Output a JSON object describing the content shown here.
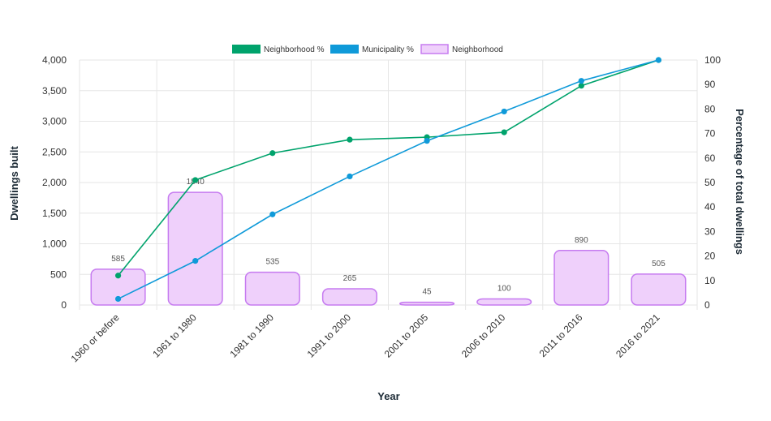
{
  "chart_data": {
    "type": "bar",
    "xlabel": "Year",
    "ylabel": "Dwellings built",
    "y2label": "Percentage of total dwellings",
    "categories": [
      "1960 or before",
      "1961 to 1980",
      "1981 to 1990",
      "1991 to 2000",
      "2001 to 2005",
      "2006 to 2010",
      "2011 to 2016",
      "2016 to 2021"
    ],
    "ylim": [
      0,
      4000
    ],
    "yticks": [
      "0",
      "500",
      "1,000",
      "1,500",
      "2,000",
      "2,500",
      "3,000",
      "3,500",
      "4,000"
    ],
    "y2lim": [
      0,
      100
    ],
    "y2ticks": [
      "0",
      "10",
      "20",
      "30",
      "40",
      "50",
      "60",
      "70",
      "80",
      "90",
      "100"
    ],
    "legend_position": "top",
    "grid": true,
    "series": [
      {
        "name": "Neighborhood %",
        "type": "line",
        "axis": "right",
        "color": "#00a36c",
        "values": [
          12,
          51,
          62,
          67.5,
          68.5,
          70.5,
          89.5,
          100
        ]
      },
      {
        "name": "Municipality %",
        "type": "line",
        "axis": "right",
        "color": "#0f9ad9",
        "values": [
          2.5,
          18,
          37,
          52.5,
          67,
          79,
          91.5,
          100
        ]
      },
      {
        "name": "Neighborhood",
        "type": "bar",
        "axis": "left",
        "color": "#c67bf0",
        "fill": "#efd0fb",
        "values": [
          585,
          1840,
          535,
          265,
          45,
          100,
          890,
          505
        ],
        "labels": [
          "585",
          "1840",
          "535",
          "265",
          "45",
          "100",
          "890",
          "505"
        ]
      }
    ]
  }
}
